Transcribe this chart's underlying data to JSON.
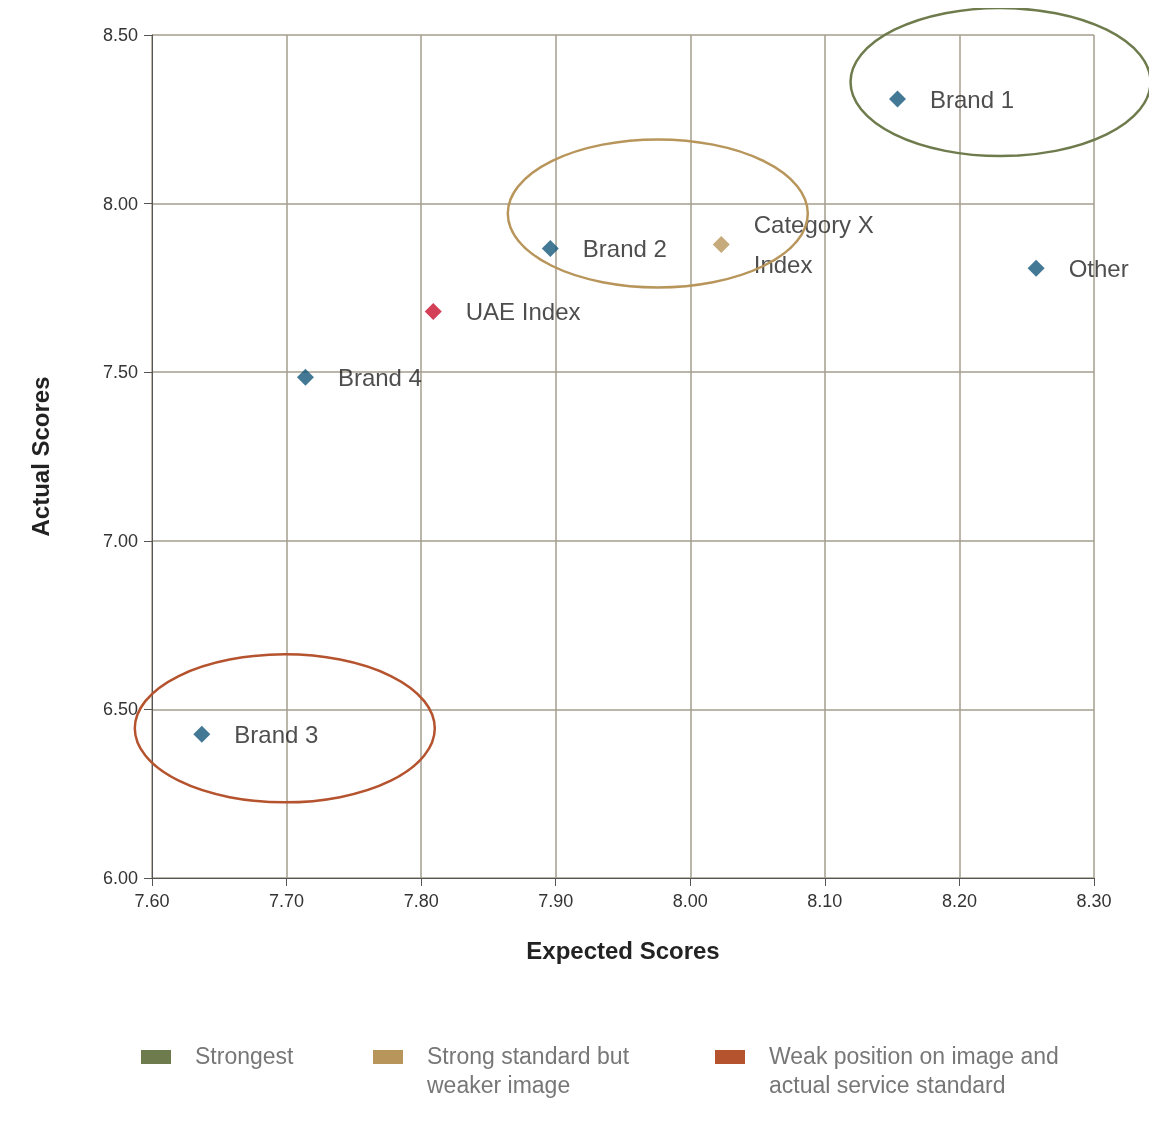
{
  "chart_data": {
    "type": "scatter",
    "xlabel": "Expected Scores",
    "ylabel": "Actual Scores",
    "xlim": [
      7.6,
      8.3
    ],
    "ylim": [
      6,
      8.5
    ],
    "xticks": [
      {
        "value": 7.6,
        "label": "7.60"
      },
      {
        "value": 7.7,
        "label": "7.70"
      },
      {
        "value": 7.8,
        "label": "7.80"
      },
      {
        "value": 7.9,
        "label": "7.90"
      },
      {
        "value": 8,
        "label": "8.00"
      },
      {
        "value": 8.1,
        "label": "8.10"
      },
      {
        "value": 8.2,
        "label": "8.20"
      },
      {
        "value": 8.3,
        "label": "8.30"
      }
    ],
    "yticks": [
      {
        "value": 6,
        "label": "6.00"
      },
      {
        "value": 6.5,
        "label": "6.50"
      },
      {
        "value": 7,
        "label": "7.00"
      },
      {
        "value": 7.5,
        "label": "7.50"
      },
      {
        "value": 8,
        "label": "8.00"
      },
      {
        "value": 8.5,
        "label": "8.50"
      }
    ],
    "grid": true,
    "marker": "diamond",
    "legend": false,
    "series": [
      {
        "name": "Brand 1",
        "color": "#14587a",
        "x": [
          8.154
        ],
        "values": [
          8.31
        ]
      },
      {
        "name": "Brand 2",
        "color": "#14587a",
        "x": [
          7.896
        ],
        "values": [
          7.867
        ]
      },
      {
        "name": "Category X Index",
        "color": "#b8955a",
        "x": [
          8.023
        ],
        "values": [
          7.879
        ]
      },
      {
        "name": "Other",
        "color": "#14587a",
        "x": [
          8.257
        ],
        "values": [
          7.808
        ]
      },
      {
        "name": "UAE Index",
        "color": "#c8102e",
        "x": [
          7.809
        ],
        "values": [
          7.68
        ]
      },
      {
        "name": "Brand 4",
        "color": "#14587a",
        "x": [
          7.714
        ],
        "values": [
          7.485
        ]
      },
      {
        "name": "Brand 3",
        "color": "#14587a",
        "x": [
          7.637
        ],
        "values": [
          6.426
        ]
      }
    ],
    "annotations": [
      "Strongest",
      "Strong standard but weaker image",
      "Weak position on image and actual service standard"
    ]
  }
}
